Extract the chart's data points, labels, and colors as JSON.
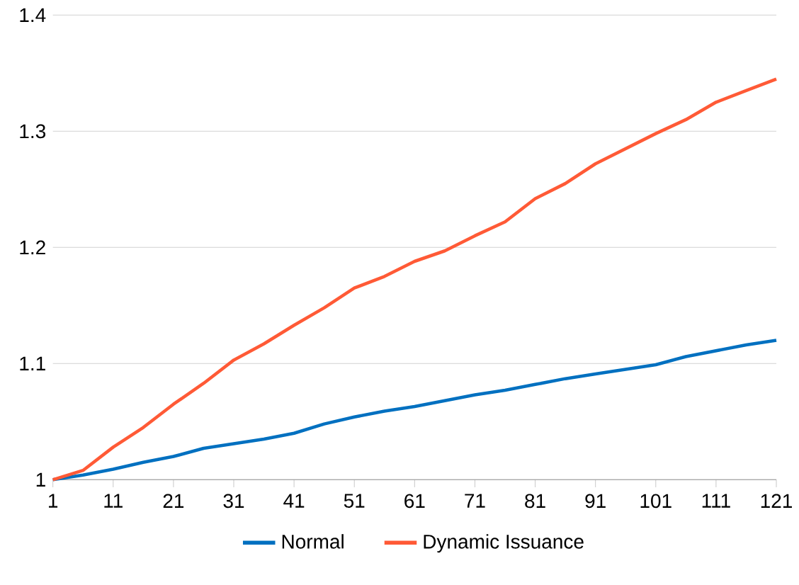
{
  "chart_data": {
    "type": "line",
    "x": [
      1,
      6,
      11,
      16,
      21,
      26,
      31,
      36,
      41,
      46,
      51,
      56,
      61,
      66,
      71,
      76,
      81,
      86,
      91,
      96,
      101,
      106,
      111,
      116,
      121
    ],
    "series": [
      {
        "name": "Normal",
        "color": "#0070c0",
        "values": [
          1.0,
          1.004,
          1.009,
          1.015,
          1.02,
          1.027,
          1.031,
          1.035,
          1.04,
          1.048,
          1.054,
          1.059,
          1.063,
          1.068,
          1.073,
          1.077,
          1.082,
          1.087,
          1.091,
          1.095,
          1.099,
          1.106,
          1.111,
          1.116,
          1.12
        ]
      },
      {
        "name": "Dynamic Issuance",
        "color": "#ff5a36",
        "values": [
          1.0,
          1.008,
          1.028,
          1.045,
          1.065,
          1.083,
          1.103,
          1.117,
          1.133,
          1.148,
          1.165,
          1.175,
          1.188,
          1.197,
          1.21,
          1.222,
          1.242,
          1.255,
          1.272,
          1.285,
          1.298,
          1.31,
          1.325,
          1.335,
          1.345
        ]
      }
    ],
    "xlim": [
      1,
      121
    ],
    "xticks": [
      1,
      11,
      21,
      31,
      41,
      51,
      61,
      71,
      81,
      91,
      101,
      111,
      121
    ],
    "ylim": [
      1,
      1.4
    ],
    "yticks": [
      1,
      1.1,
      1.2,
      1.3,
      1.4
    ],
    "grid": "y",
    "legend": "bottom",
    "marker": "none",
    "line_style": "solid"
  }
}
